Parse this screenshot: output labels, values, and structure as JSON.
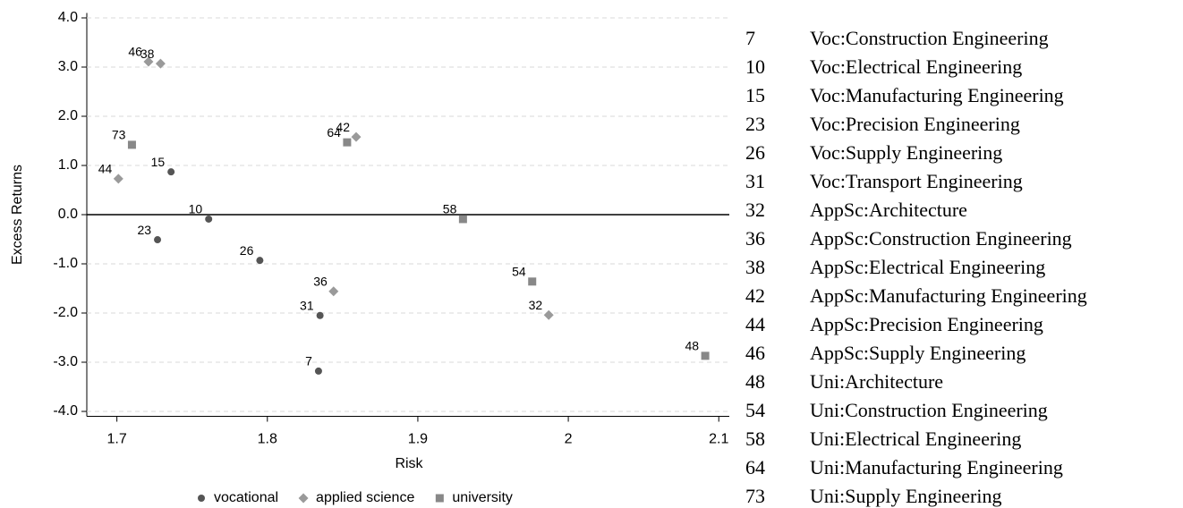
{
  "chart_data": {
    "type": "scatter",
    "x_label": "Risk",
    "y_label": "Excess Returns",
    "xlim": [
      1.68,
      2.107
    ],
    "ylim": [
      -4.1,
      4.1
    ],
    "xticks": [
      1.7,
      1.8,
      1.9,
      2,
      2.1
    ],
    "yticks": [
      {
        "value": -4,
        "label": "-4.0"
      },
      {
        "value": -3,
        "label": "-3.0"
      },
      {
        "value": -2,
        "label": "-2.0"
      },
      {
        "value": -1,
        "label": "-1.0"
      },
      {
        "value": 0,
        "label": "0.0"
      },
      {
        "value": 1,
        "label": "1.0"
      },
      {
        "value": 2,
        "label": "2.0"
      },
      {
        "value": 3,
        "label": "3.0"
      },
      {
        "value": 4,
        "label": "4.0"
      }
    ],
    "grid": true,
    "reference_line": 0,
    "legend": "bottom",
    "series": [
      {
        "name": "vocational",
        "color": "#555555",
        "marker": "circle",
        "labels": [
          "15",
          "10",
          "23",
          "26",
          "31",
          "7"
        ],
        "x": [
          1.736,
          1.761,
          1.727,
          1.795,
          1.835,
          1.834
        ],
        "values": [
          0.87,
          -0.09,
          -0.51,
          -0.93,
          -2.05,
          -3.18
        ]
      },
      {
        "name": "applied science",
        "color": "#9a9a9a",
        "marker": "diamond",
        "labels": [
          "46",
          "38",
          "42",
          "44",
          "36",
          "32"
        ],
        "x": [
          1.721,
          1.729,
          1.859,
          1.701,
          1.844,
          1.987
        ],
        "values": [
          3.11,
          3.07,
          1.58,
          0.73,
          -1.56,
          -2.04
        ]
      },
      {
        "name": "university",
        "color": "#888888",
        "marker": "square",
        "labels": [
          "73",
          "64",
          "58",
          "54",
          "48"
        ],
        "x": [
          1.71,
          1.853,
          1.93,
          1.976,
          2.091
        ],
        "values": [
          1.42,
          1.47,
          -0.09,
          -1.36,
          -2.87
        ]
      }
    ]
  },
  "key_table": {
    "rows": [
      [
        "7",
        "Voc:Construction Engineering"
      ],
      [
        "10",
        "Voc:Electrical Engineering"
      ],
      [
        "15",
        "Voc:Manufacturing Engineering"
      ],
      [
        "23",
        "Voc:Precision Engineering"
      ],
      [
        "26",
        "Voc:Supply Engineering"
      ],
      [
        "31",
        "Voc:Transport Engineering"
      ],
      [
        "32",
        "AppSc:Architecture"
      ],
      [
        "36",
        "AppSc:Construction Engineering"
      ],
      [
        "38",
        "AppSc:Electrical Engineering"
      ],
      [
        "42",
        "AppSc:Manufacturing Engineering"
      ],
      [
        "44",
        "AppSc:Precision Engineering"
      ],
      [
        "46",
        "AppSc:Supply Engineering"
      ],
      [
        "48",
        "Uni:Architecture"
      ],
      [
        "54",
        "Uni:Construction Engineering"
      ],
      [
        "58",
        "Uni:Electrical Engineering"
      ],
      [
        "64",
        "Uni:Manufacturing Engineering"
      ],
      [
        "73",
        "Uni:Supply Engineering"
      ]
    ]
  }
}
